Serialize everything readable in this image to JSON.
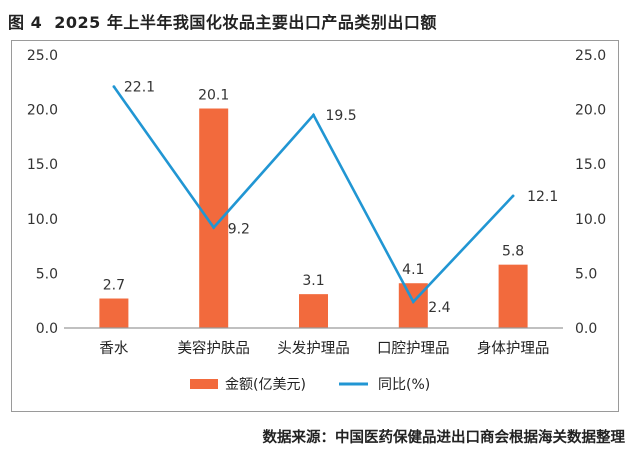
{
  "figure": {
    "number": "图 4",
    "title": "2025 年上半年我国化妆品主要出口产品类别出口额",
    "source": "数据来源：中国医药保健品进出口商会根据海关数据整理"
  },
  "chart_data": {
    "type": "bar+line",
    "categories": [
      "香水",
      "美容护肤品",
      "头发护理品",
      "口腔护理品",
      "身体护理品"
    ],
    "series": [
      {
        "name": "金额(亿美元)",
        "type": "bar",
        "axis": "left",
        "values": [
          2.7,
          20.1,
          3.1,
          4.1,
          5.8
        ],
        "value_labels": [
          "2.7",
          "20.1",
          "3.1",
          "4.1",
          "5.8"
        ],
        "color": "#f26a3d"
      },
      {
        "name": "同比(%)",
        "type": "line",
        "axis": "right",
        "values": [
          22.1,
          9.2,
          19.5,
          2.4,
          12.1
        ],
        "value_labels": [
          "22.1",
          "9.2",
          "19.5",
          "2.4",
          "12.1"
        ],
        "color": "#2196d3"
      }
    ],
    "ylim_left": [
      0,
      25
    ],
    "ylim_right": [
      0,
      25
    ],
    "y_ticks_left": [
      "0.0",
      "5.0",
      "10.0",
      "15.0",
      "20.0",
      "25.0"
    ],
    "y_ticks_right": [
      "0.0",
      "5.0",
      "10.0",
      "15.0",
      "20.0",
      "25.0"
    ],
    "grid": false,
    "legend_position": "bottom",
    "axis_color": "#9a9a9a"
  }
}
